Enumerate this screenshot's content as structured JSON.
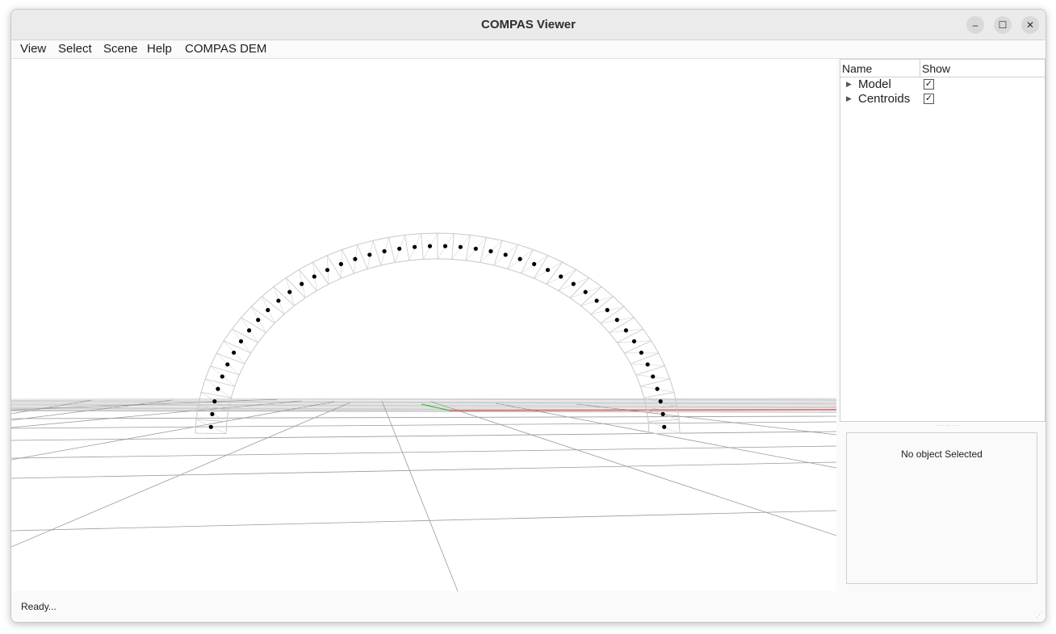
{
  "window": {
    "title": "COMPAS Viewer",
    "controls": {
      "minimize": "–",
      "maximize": "☐",
      "close": "✕"
    }
  },
  "menu": [
    "View",
    "Select",
    "Scene",
    "Help",
    "COMPAS DEM"
  ],
  "tree": {
    "columns": [
      "Name",
      "Show"
    ],
    "rows": [
      {
        "label": "Model",
        "show": true
      },
      {
        "label": "Centroids",
        "show": true
      }
    ]
  },
  "properties": {
    "empty_text": "No object Selected"
  },
  "status": {
    "text": "Ready..."
  },
  "colors": {
    "axis_x": "#e04040",
    "axis_y": "#40c040",
    "grid": "#9a9a9a",
    "block_edges": "#c8c8c8",
    "centroid": "#000000"
  },
  "icons": {
    "expand": "triangle-right-icon",
    "checkbox": "checkmark-icon"
  }
}
